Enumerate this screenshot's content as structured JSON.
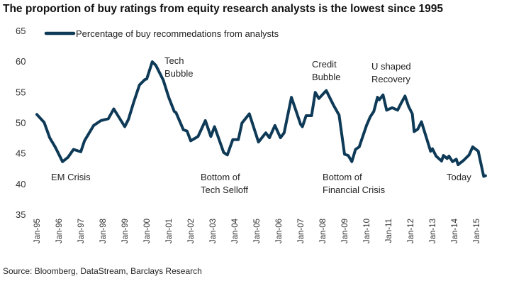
{
  "chart_data": {
    "type": "line",
    "title": "The proportion of buy ratings from equity research analysts is the lowest since 1995",
    "source": "Source: Bloomberg, DataStream, Barclays Research",
    "xlabel": "",
    "ylabel": "",
    "ylim": [
      35,
      65
    ],
    "yticks": [
      "35",
      "40",
      "45",
      "50",
      "55",
      "60",
      "65"
    ],
    "xticks": [
      "Jan-95",
      "Jan-96",
      "Jan-97",
      "Jan-98",
      "Jan-99",
      "Jan-00",
      "Jan-01",
      "Jan-02",
      "Jan-03",
      "Jan-04",
      "Jan-05",
      "Jan-06",
      "Jan-07",
      "Jan-08",
      "Jan-09",
      "Jan-10",
      "Jan-11",
      "Jan-12",
      "Jan-13",
      "Jan-14",
      "Jan-15"
    ],
    "grid": false,
    "legend_position": "top-left",
    "color": "#0e3a57",
    "series": [
      {
        "name": "Percentage of buy recommedations from analysts",
        "points": [
          [
            "1995-01",
            51.3
          ],
          [
            "1995-05",
            50.0
          ],
          [
            "1995-08",
            47.5
          ],
          [
            "1995-11",
            46.0
          ],
          [
            "1996-03",
            43.6
          ],
          [
            "1996-06",
            44.3
          ],
          [
            "1996-09",
            45.6
          ],
          [
            "1997-01",
            45.2
          ],
          [
            "1997-03",
            47.0
          ],
          [
            "1997-08",
            49.5
          ],
          [
            "1997-12",
            50.3
          ],
          [
            "1998-04",
            50.6
          ],
          [
            "1998-07",
            52.2
          ],
          [
            "1999-01",
            49.3
          ],
          [
            "1999-03",
            50.5
          ],
          [
            "1999-06",
            53.4
          ],
          [
            "1999-09",
            56.1
          ],
          [
            "1999-12",
            57.0
          ],
          [
            "2000-01",
            57.1
          ],
          [
            "2000-04",
            59.9
          ],
          [
            "2000-06",
            59.3
          ],
          [
            "2000-10",
            56.9
          ],
          [
            "2001-01",
            54.1
          ],
          [
            "2001-04",
            51.8
          ],
          [
            "2001-05",
            51.6
          ],
          [
            "2001-09",
            48.8
          ],
          [
            "2001-11",
            48.6
          ],
          [
            "2002-01",
            47.0
          ],
          [
            "2002-05",
            47.7
          ],
          [
            "2002-09",
            50.3
          ],
          [
            "2002-12",
            47.7
          ],
          [
            "2003-02",
            49.3
          ],
          [
            "2003-07",
            45.1
          ],
          [
            "2003-09",
            44.7
          ],
          [
            "2003-12",
            47.2
          ],
          [
            "2004-03",
            47.2
          ],
          [
            "2004-05",
            49.9
          ],
          [
            "2004-09",
            51.4
          ],
          [
            "2005-02",
            46.8
          ],
          [
            "2005-06",
            48.3
          ],
          [
            "2005-08",
            47.5
          ],
          [
            "2005-11",
            49.5
          ],
          [
            "2006-02",
            47.5
          ],
          [
            "2006-04",
            48.3
          ],
          [
            "2006-08",
            54.1
          ],
          [
            "2007-01",
            49.7
          ],
          [
            "2007-02",
            49.3
          ],
          [
            "2007-04",
            51.1
          ],
          [
            "2007-07",
            51.1
          ],
          [
            "2007-09",
            54.9
          ],
          [
            "2007-11",
            53.9
          ],
          [
            "2008-03",
            55.2
          ],
          [
            "2008-07",
            52.8
          ],
          [
            "2008-10",
            51.2
          ],
          [
            "2009-01",
            44.8
          ],
          [
            "2009-03",
            44.6
          ],
          [
            "2009-05",
            43.6
          ],
          [
            "2009-07",
            45.6
          ],
          [
            "2009-09",
            46.0
          ],
          [
            "2010-01",
            49.5
          ],
          [
            "2010-03",
            50.9
          ],
          [
            "2010-05",
            51.8
          ],
          [
            "2010-07",
            54.1
          ],
          [
            "2010-08",
            53.7
          ],
          [
            "2010-10",
            54.5
          ],
          [
            "2010-12",
            52.0
          ],
          [
            "2011-03",
            52.4
          ],
          [
            "2011-06",
            52.0
          ],
          [
            "2011-08",
            53.2
          ],
          [
            "2011-10",
            54.3
          ],
          [
            "2011-12",
            52.6
          ],
          [
            "2012-02",
            51.4
          ],
          [
            "2012-03",
            48.5
          ],
          [
            "2012-05",
            48.9
          ],
          [
            "2012-07",
            50.1
          ],
          [
            "2012-10",
            47.2
          ],
          [
            "2012-12",
            45.3
          ],
          [
            "2013-01",
            45.7
          ],
          [
            "2013-03",
            44.5
          ],
          [
            "2013-06",
            43.7
          ],
          [
            "2013-07",
            44.6
          ],
          [
            "2013-09",
            44.1
          ],
          [
            "2013-10",
            44.5
          ],
          [
            "2013-12",
            43.6
          ],
          [
            "2014-02",
            44.0
          ],
          [
            "2014-03",
            43.1
          ],
          [
            "2014-06",
            43.8
          ],
          [
            "2014-09",
            44.7
          ],
          [
            "2014-11",
            46.0
          ],
          [
            "2015-02",
            45.3
          ],
          [
            "2015-05",
            41.2
          ],
          [
            "2015-06",
            41.3
          ]
        ]
      }
    ],
    "annotations": [
      {
        "lines": [
          "EM Crisis"
        ]
      },
      {
        "lines": [
          "Tech",
          "Bubble"
        ]
      },
      {
        "lines": [
          "Bottom of",
          "Tech Selloff"
        ]
      },
      {
        "lines": [
          "Credit",
          "Bubble"
        ]
      },
      {
        "lines": [
          "Bottom of",
          "Financial Crisis"
        ]
      },
      {
        "lines": [
          "U shaped",
          "Recovery"
        ]
      },
      {
        "lines": [
          "Today"
        ]
      }
    ]
  }
}
